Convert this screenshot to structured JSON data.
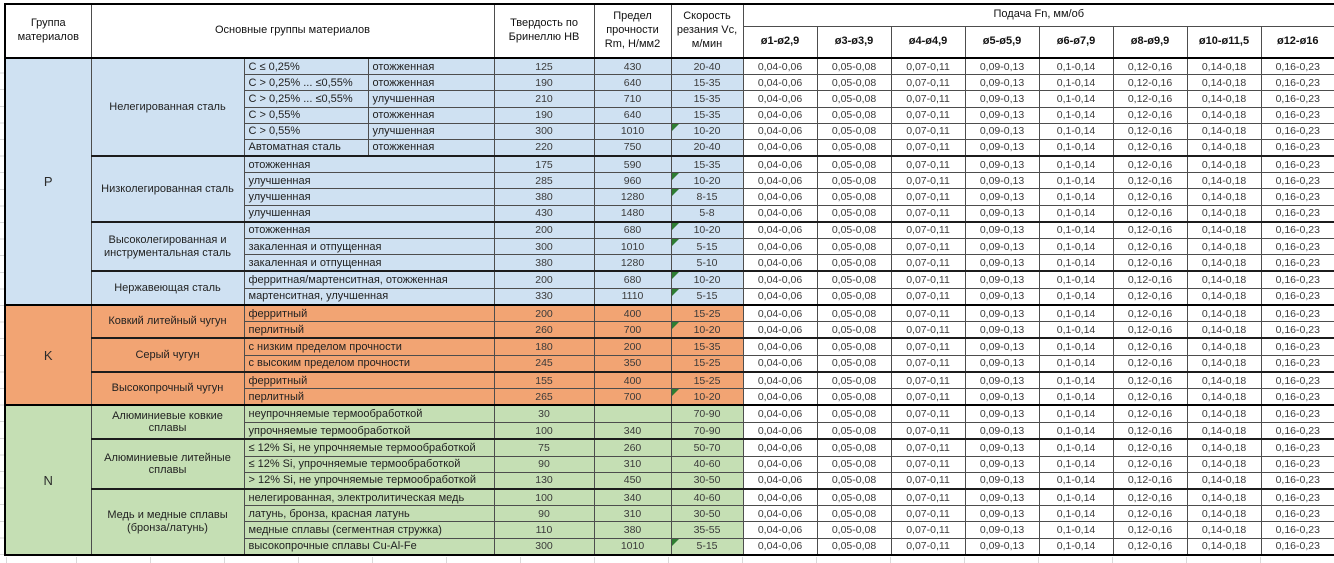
{
  "colors": {
    "group_p": "#CFE1F2",
    "group_k": "#F2A473",
    "group_n": "#C5DFB4",
    "marker": "#2E7D32",
    "feed_cell_bg": "#FFFFFF"
  },
  "table": {
    "header": {
      "group_col": "Группа материалов",
      "main_col": "Основные группы материалов",
      "hb_col": "Твердость по Бринеллю НВ",
      "rm_col": "Предел прочности Rm, Н/мм2",
      "vc_col": "Скорость резания Vc, м/мин",
      "feed_title": "Подача Fn, мм/об",
      "feed_cols": [
        "ø1-ø2,9",
        "ø3-ø3,9",
        "ø4-ø4,9",
        "ø5-ø5,9",
        "ø6-ø7,9",
        "ø8-ø9,9",
        "ø10-ø11,5",
        "ø12-ø16"
      ]
    },
    "feed_values": [
      "0,04-0,06",
      "0,05-0,08",
      "0,07-0,11",
      "0,09-0,13",
      "0,1-0,14",
      "0,12-0,16",
      "0,14-0,18",
      "0,16-0,23"
    ],
    "groups": [
      {
        "letter": "P",
        "color": "#CFE1F2",
        "families": [
          {
            "name": "Нелегированная сталь",
            "rows": [
              {
                "c1": "C ≤ 0,25%",
                "c2": "отожженная",
                "hb": "125",
                "rm": "430",
                "vc": "20-40"
              },
              {
                "c1": "C > 0,25% ... ≤0,55%",
                "c2": "отожженная",
                "hb": "190",
                "rm": "640",
                "vc": "15-35"
              },
              {
                "c1": "C > 0,25% ... ≤0,55%",
                "c2": "улучшенная",
                "hb": "210",
                "rm": "710",
                "vc": "15-35"
              },
              {
                "c1": "C > 0,55%",
                "c2": "отожженная",
                "hb": "190",
                "rm": "640",
                "vc": "15-35"
              },
              {
                "c1": "C > 0,55%",
                "c2": "улучшенная",
                "hb": "300",
                "rm": "1010",
                "vc": "10-20",
                "marker": true
              },
              {
                "c1": "Автоматная сталь",
                "c2": "отожженная",
                "hb": "220",
                "rm": "750",
                "vc": "20-40"
              }
            ]
          },
          {
            "name": "Низколегированная сталь",
            "rows": [
              {
                "desc": "отожженная",
                "hb": "175",
                "rm": "590",
                "vc": "15-35"
              },
              {
                "desc": "улучшенная",
                "hb": "285",
                "rm": "960",
                "vc": "10-20",
                "marker": true
              },
              {
                "desc": "улучшенная",
                "hb": "380",
                "rm": "1280",
                "vc": "8-15",
                "marker": true
              },
              {
                "desc": "улучшенная",
                "hb": "430",
                "rm": "1480",
                "vc": "5-8"
              }
            ]
          },
          {
            "name": "Высоколегированная и инструментальная сталь",
            "rows": [
              {
                "desc": "отожженная",
                "hb": "200",
                "rm": "680",
                "vc": "10-20",
                "marker": true
              },
              {
                "desc": "закаленная и отпущенная",
                "hb": "300",
                "rm": "1010",
                "vc": "5-15",
                "marker": true
              },
              {
                "desc": "закаленная и отпущенная",
                "hb": "380",
                "rm": "1280",
                "vc": "5-10"
              }
            ]
          },
          {
            "name": "Нержавеющая сталь",
            "rows": [
              {
                "desc": "ферритная/мартенситная, отожженная",
                "hb": "200",
                "rm": "680",
                "vc": "10-20",
                "marker": true
              },
              {
                "desc": "мартенситная, улучшенная",
                "hb": "330",
                "rm": "1110",
                "vc": "5-15",
                "marker": true
              }
            ]
          }
        ]
      },
      {
        "letter": "K",
        "color": "#F2A473",
        "families": [
          {
            "name": "Ковкий литейный чугун",
            "rows": [
              {
                "desc": "ферритный",
                "hb": "200",
                "rm": "400",
                "vc": "15-25"
              },
              {
                "desc": "перлитный",
                "hb": "260",
                "rm": "700",
                "vc": "10-20",
                "marker": true
              }
            ]
          },
          {
            "name": "Серый чугун",
            "rows": [
              {
                "desc": "с низким пределом прочности",
                "hb": "180",
                "rm": "200",
                "vc": "15-35"
              },
              {
                "desc": "с высоким пределом прочности",
                "hb": "245",
                "rm": "350",
                "vc": "15-25"
              }
            ]
          },
          {
            "name": "Высокопрочный чугун",
            "rows": [
              {
                "desc": "ферритный",
                "hb": "155",
                "rm": "400",
                "vc": "15-25"
              },
              {
                "desc": "перлитный",
                "hb": "265",
                "rm": "700",
                "vc": "10-20",
                "marker": true
              }
            ]
          }
        ]
      },
      {
        "letter": "N",
        "color": "#C5DFB4",
        "families": [
          {
            "name": "Алюминиевые ковкие сплавы",
            "rows": [
              {
                "desc": "неупрочняемые термообработкой",
                "hb": "30",
                "rm": "",
                "vc": "70-90"
              },
              {
                "desc": "упрочняемые термообработкой",
                "hb": "100",
                "rm": "340",
                "vc": "70-90"
              }
            ]
          },
          {
            "name": "Алюминиевые литейные сплавы",
            "rows": [
              {
                "desc": "≤ 12% Si, не упрочняемые термообработкой",
                "hb": "75",
                "rm": "260",
                "vc": "50-70"
              },
              {
                "desc": "≤ 12% Si, упрочняемые термообработкой",
                "hb": "90",
                "rm": "310",
                "vc": "40-60"
              },
              {
                "desc": "> 12% Si, не упрочняемые термообработкой",
                "hb": "130",
                "rm": "450",
                "vc": "30-50"
              }
            ]
          },
          {
            "name": "Медь и медные сплавы (бронза/латунь)",
            "rows": [
              {
                "desc": "нелегированная, электролитическая медь",
                "hb": "100",
                "rm": "340",
                "vc": "40-60"
              },
              {
                "desc": "латунь, бронза, красная латунь",
                "hb": "90",
                "rm": "310",
                "vc": "30-50"
              },
              {
                "desc": "медные сплавы (сегментная стружка)",
                "hb": "110",
                "rm": "380",
                "vc": "35-55"
              },
              {
                "desc": "высокопрочные сплавы Cu-Al-Fe",
                "hb": "300",
                "rm": "1010",
                "vc": "5-15",
                "marker": true
              }
            ]
          }
        ]
      }
    ]
  }
}
